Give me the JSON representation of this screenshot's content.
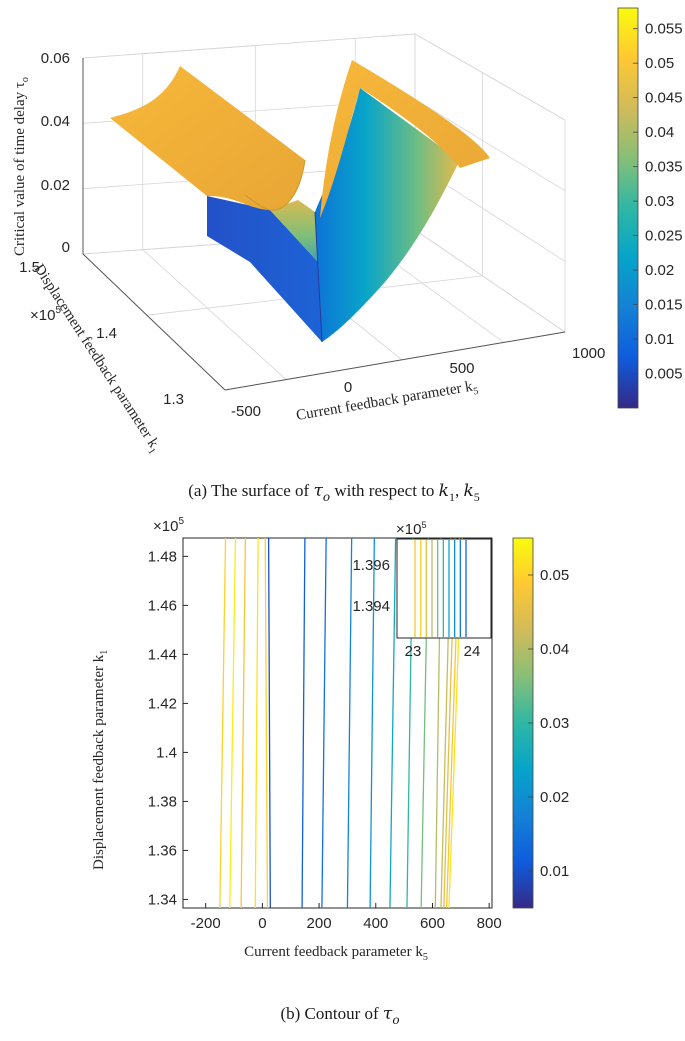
{
  "colors": {
    "colormap": [
      "#352a87",
      "#0f5cdd",
      "#1481d6",
      "#06a4ca",
      "#2eb7a4",
      "#87bf77",
      "#d1bb59",
      "#fec832",
      "#f9fb0e"
    ],
    "axis": "#555555",
    "grid": "#d6d6d6"
  },
  "chart_data": [
    {
      "type": "surface",
      "name": "surface-3d",
      "title": "",
      "caption": {
        "prefix": "(a) The surface of ",
        "tau": "τ",
        "tau_sub": "o",
        "middle": " with respect to ",
        "k1": "k",
        "k1_sub": "1",
        "sep": ", ",
        "k5": "k",
        "k5_sub": "5"
      },
      "zlabel": {
        "text": "Critical value of time delay τ",
        "sub": "o"
      },
      "ylabel": {
        "text": "Displacement feedback parameter k",
        "sub": "1"
      },
      "xlabel": {
        "text": "Current feedback parameter k",
        "sub": "5"
      },
      "y_multiplier": {
        "base": "×10",
        "exp": "5"
      },
      "x_ticks": [
        "-500",
        "0",
        "500",
        "1000"
      ],
      "y_ticks": [
        "1.3",
        "1.4",
        "1.5"
      ],
      "z_ticks": [
        "0",
        "0.02",
        "0.04",
        "0.06"
      ],
      "xlim": [
        -500,
        1000
      ],
      "ylim": [
        130000,
        150000
      ],
      "zlim": [
        0,
        0.06
      ],
      "surface_profile": {
        "k5": [
          -500,
          -280,
          -180,
          -60,
          0,
          60,
          200,
          400,
          600,
          800,
          1000
        ],
        "tau": [
          0.056,
          0.056,
          0.048,
          0.056,
          0.0,
          0.012,
          0.022,
          0.033,
          0.044,
          0.054,
          0.054
        ]
      },
      "colorbar": {
        "min": 0.0,
        "max": 0.058,
        "ticks": [
          "0.005",
          "0.01",
          "0.015",
          "0.02",
          "0.025",
          "0.03",
          "0.035",
          "0.04",
          "0.045",
          "0.05",
          "0.055"
        ]
      }
    },
    {
      "type": "contour",
      "name": "contour-2d",
      "caption": {
        "prefix": "(b) Contour of ",
        "tau": "τ",
        "tau_sub": "o"
      },
      "xlabel": {
        "text": "Current feedback parameter k",
        "sub": "5"
      },
      "ylabel": {
        "text": "Displacement feedback parameter k",
        "sub": "1"
      },
      "y_multiplier": {
        "base": "×10",
        "exp": "5"
      },
      "x_ticks": [
        -200,
        0,
        200,
        400,
        600,
        800
      ],
      "y_ticks": [
        1.34,
        1.36,
        1.38,
        1.4,
        1.42,
        1.44,
        1.46,
        1.48
      ],
      "xlim": [
        -280,
        810
      ],
      "ylim": [
        1.3365,
        1.4875
      ],
      "contour_lines": [
        {
          "x_bottom": -150,
          "x_top": -130,
          "level": 0.05
        },
        {
          "x_bottom": -115,
          "x_top": -95,
          "level": 0.053
        },
        {
          "x_bottom": -75,
          "x_top": -60,
          "level": 0.048
        },
        {
          "x_bottom": -25,
          "x_top": -15,
          "level": 0.052
        },
        {
          "x_bottom": 18,
          "x_top": 10,
          "level": 0.05
        },
        {
          "x_bottom": 28,
          "x_top": 22,
          "level": 0.01
        },
        {
          "x_bottom": 140,
          "x_top": 150,
          "level": 0.012
        },
        {
          "x_bottom": 210,
          "x_top": 225,
          "level": 0.015
        },
        {
          "x_bottom": 300,
          "x_top": 315,
          "level": 0.018
        },
        {
          "x_bottom": 380,
          "x_top": 395,
          "level": 0.021
        },
        {
          "x_bottom": 450,
          "x_top": 470,
          "level": 0.025
        },
        {
          "x_bottom": 510,
          "x_top": 530,
          "level": 0.03
        },
        {
          "x_bottom": 560,
          "x_top": 585,
          "level": 0.035
        },
        {
          "x_bottom": 610,
          "x_top": 630,
          "level": 0.04
        },
        {
          "x_bottom": 630,
          "x_top": 665,
          "level": 0.042
        },
        {
          "x_bottom": 640,
          "x_top": 680,
          "level": 0.045
        },
        {
          "x_bottom": 650,
          "x_top": 695,
          "level": 0.048
        },
        {
          "x_bottom": 658,
          "x_top": 705,
          "level": 0.052
        }
      ],
      "inset": {
        "x_ticks": [
          "23",
          "24"
        ],
        "y_ticks": [
          "1.396",
          "1.394"
        ],
        "y_multiplier": {
          "base": "×10",
          "exp": "5"
        },
        "lines": [
          0.048,
          0.05,
          0.045,
          0.04,
          0.035,
          0.03,
          0.025,
          0.02,
          0.016,
          0.012
        ]
      },
      "colorbar": {
        "min": 0.005,
        "max": 0.055,
        "ticks": [
          "0.01",
          "0.02",
          "0.03",
          "0.04",
          "0.05"
        ]
      }
    }
  ]
}
